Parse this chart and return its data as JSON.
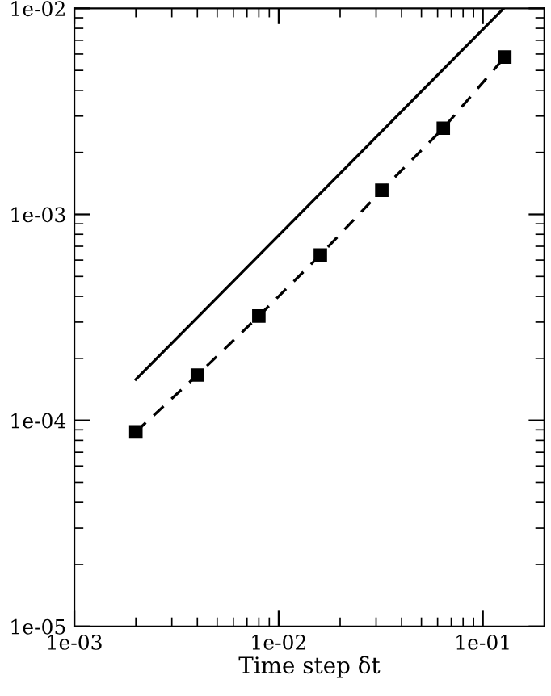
{
  "chart_data": {
    "type": "line",
    "xlabel": "Time step δt",
    "log": "xy",
    "grid": false,
    "xlim": [
      0.001,
      0.2
    ],
    "ylim": [
      1e-05,
      0.01
    ],
    "xticks": [
      {
        "value": 0.001,
        "label": "1e-03"
      },
      {
        "value": 0.01,
        "label": "1e-02"
      },
      {
        "value": 0.1,
        "label": "1e-01"
      }
    ],
    "yticks": [
      {
        "value": 1e-05,
        "label": "1e-05"
      },
      {
        "value": 0.0001,
        "label": "1e-04"
      },
      {
        "value": 0.001,
        "label": "1e-03"
      },
      {
        "value": 0.01,
        "label": "1e-02"
      }
    ],
    "series": [
      {
        "color": "#000000",
        "marker": "square",
        "line_style": "dashed",
        "x": [
          0.002,
          0.004,
          0.008,
          0.016,
          0.032,
          0.064,
          0.128
        ],
        "values": [
          8.8e-05,
          0.000166,
          0.000321,
          0.000635,
          0.00131,
          0.00262,
          0.0058
        ]
      },
      {
        "color": "#000000",
        "marker": "none",
        "line_style": "solid",
        "x": [
          0.002,
          0.1265
        ],
        "values": [
          0.000158,
          0.01
        ]
      }
    ]
  }
}
